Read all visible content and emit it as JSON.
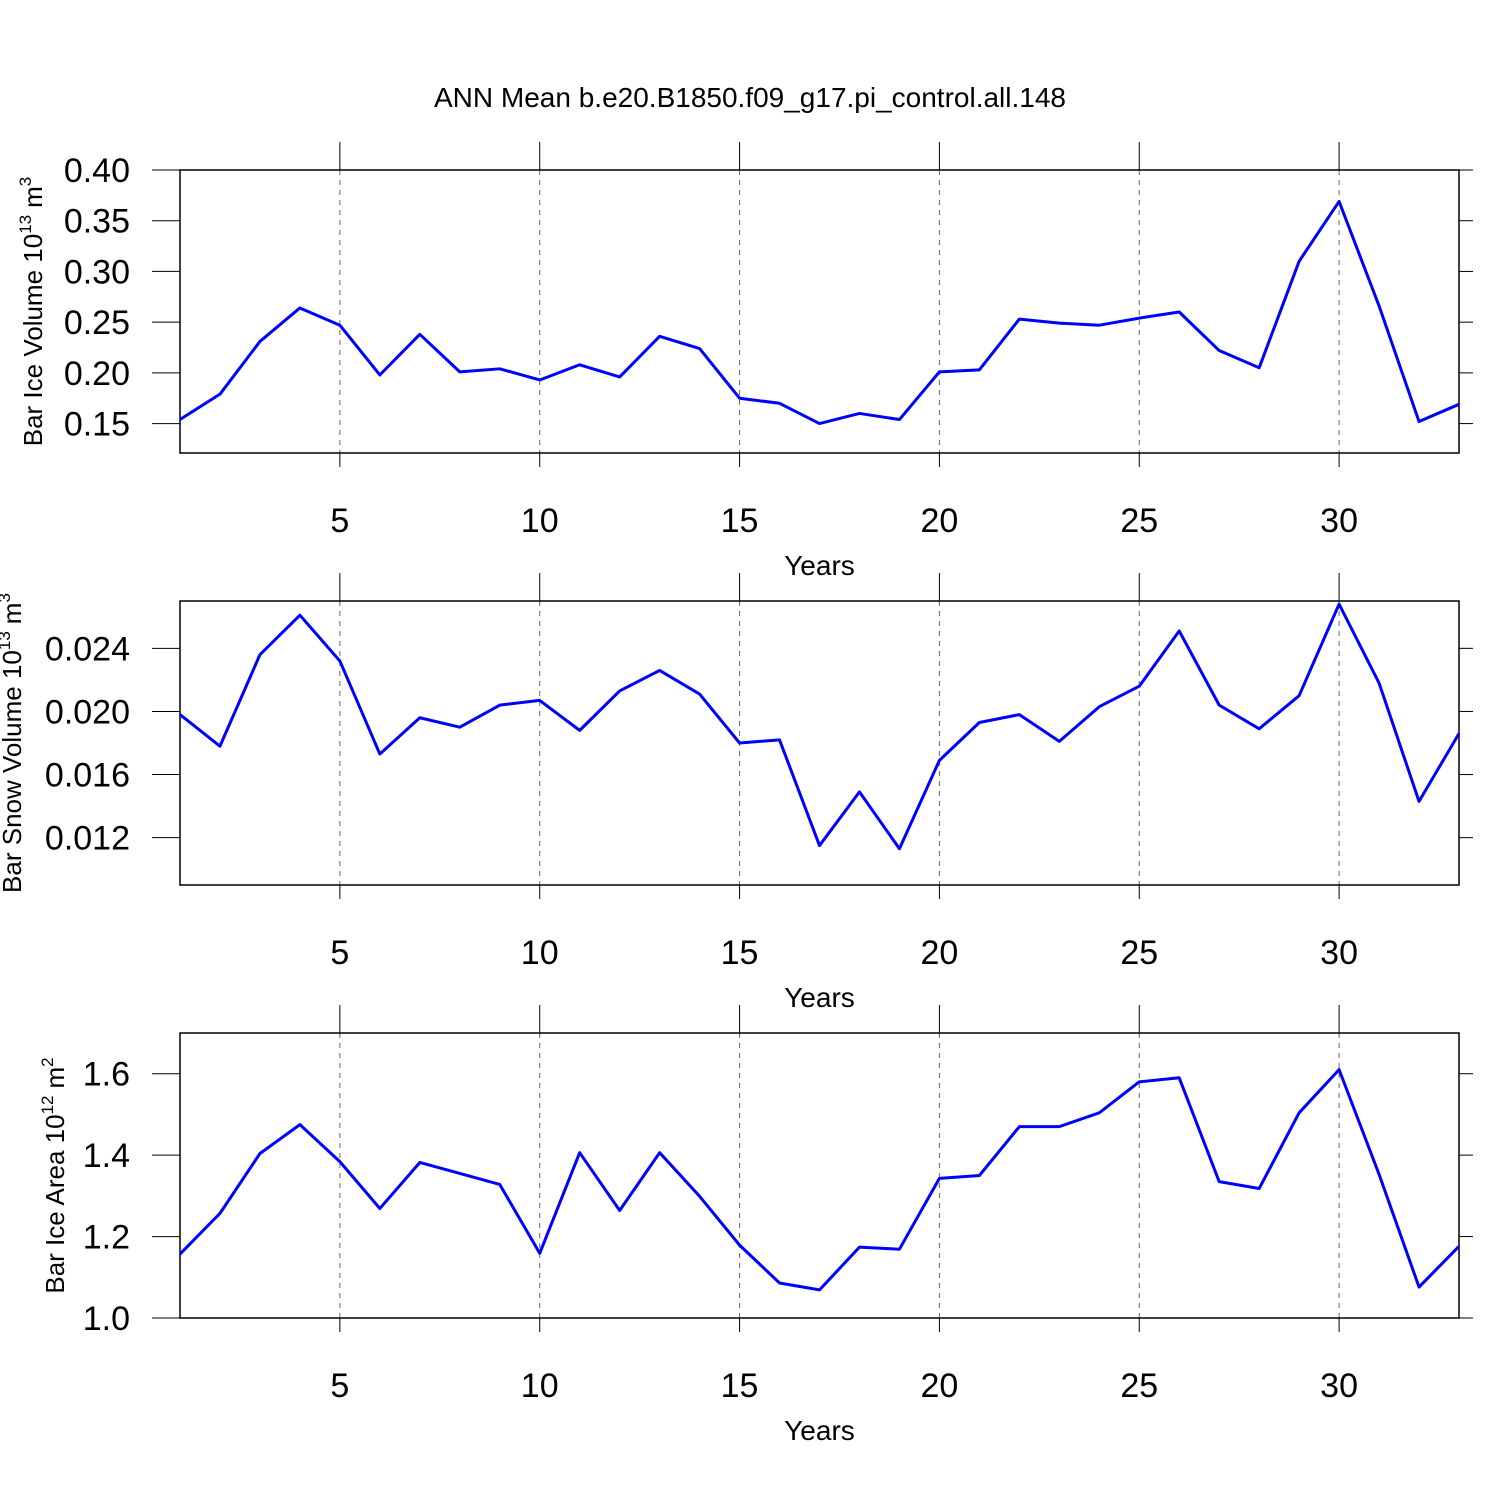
{
  "title": "ANN Mean b.e20.B1850.f09_g17.pi_control.all.148",
  "chart_data": [
    {
      "type": "line",
      "ylabel": [
        "Bar Ice Volume 10",
        "13",
        "m",
        "3"
      ],
      "xlabel": "Years",
      "x": [
        1,
        2,
        3,
        4,
        5,
        6,
        7,
        8,
        9,
        10,
        11,
        12,
        13,
        14,
        15,
        16,
        17,
        18,
        19,
        20,
        21,
        22,
        23,
        24,
        25,
        26,
        27,
        28,
        29,
        30,
        31,
        32,
        33
      ],
      "series": [
        {
          "color": "#0000ff",
          "values": [
            0.154,
            0.179,
            0.231,
            0.264,
            0.247,
            0.198,
            0.238,
            0.201,
            0.204,
            0.193,
            0.208,
            0.196,
            0.236,
            0.224,
            0.175,
            0.17,
            0.15,
            0.16,
            0.154,
            0.201,
            0.203,
            0.253,
            0.249,
            0.247,
            0.254,
            0.26,
            0.222,
            0.205,
            0.31,
            0.369,
            0.266,
            0.152,
            0.169
          ]
        }
      ],
      "xlim": [
        1,
        33
      ],
      "xticks": [
        5,
        10,
        15,
        20,
        25,
        30
      ],
      "ylim": [
        0.121,
        0.4
      ],
      "yticks": [
        0.15,
        {
          "value": 0.2,
          "label": "0.20"
        },
        0.25,
        {
          "value": 0.3,
          "label": "0.30"
        },
        0.35,
        {
          "value": 0.4,
          "label": "0.40"
        }
      ],
      "xgrid": true
    },
    {
      "type": "line",
      "ylabel": [
        "Bar Snow Volume 10",
        "13",
        "m",
        "3"
      ],
      "xlabel": "Years",
      "x": [
        1,
        2,
        3,
        4,
        5,
        6,
        7,
        8,
        9,
        10,
        11,
        12,
        13,
        14,
        15,
        16,
        17,
        18,
        19,
        20,
        21,
        22,
        23,
        24,
        25,
        26,
        27,
        28,
        29,
        30,
        31,
        32,
        33
      ],
      "series": [
        {
          "color": "#0000ff",
          "values": [
            0.0198,
            0.0178,
            0.0236,
            0.0261,
            0.0232,
            0.0173,
            0.0196,
            0.019,
            0.0204,
            0.0207,
            0.0188,
            0.0213,
            0.0226,
            0.0211,
            0.018,
            0.0182,
            0.0115,
            0.0149,
            0.0113,
            0.0169,
            0.0193,
            0.0198,
            0.0181,
            0.0203,
            0.0216,
            0.0251,
            0.0204,
            0.0189,
            0.021,
            0.0268,
            0.0218,
            0.0143,
            0.0186
          ]
        }
      ],
      "xlim": [
        1,
        33
      ],
      "xticks": [
        5,
        10,
        15,
        20,
        25,
        30
      ],
      "ylim": [
        0.009,
        0.027
      ],
      "yticks": [
        0.012,
        0.016,
        {
          "value": 0.02,
          "label": "0.020"
        },
        0.024
      ],
      "xgrid": true
    },
    {
      "type": "line",
      "ylabel": [
        "Bar Ice Area 10",
        "12",
        "m",
        "2"
      ],
      "xlabel": "Years",
      "x": [
        1,
        2,
        3,
        4,
        5,
        6,
        7,
        8,
        9,
        10,
        11,
        12,
        13,
        14,
        15,
        16,
        17,
        18,
        19,
        20,
        21,
        22,
        23,
        24,
        25,
        26,
        27,
        28,
        29,
        30,
        31,
        32,
        33
      ],
      "series": [
        {
          "color": "#0000ff",
          "values": [
            1.157,
            1.257,
            1.404,
            1.475,
            1.384,
            1.269,
            1.382,
            1.355,
            1.328,
            1.159,
            1.406,
            1.264,
            1.406,
            1.299,
            1.179,
            1.086,
            1.069,
            1.174,
            1.169,
            1.343,
            1.35,
            1.47,
            1.47,
            1.504,
            1.58,
            1.59,
            1.335,
            1.318,
            1.504,
            1.61,
            1.353,
            1.076,
            1.176
          ]
        }
      ],
      "xlim": [
        1,
        33
      ],
      "xticks": [
        5,
        10,
        15,
        20,
        25,
        30
      ],
      "ylim": [
        1.0,
        1.7
      ],
      "yticks": [
        {
          "value": 1.0,
          "label": "1.0"
        },
        1.2,
        1.4,
        1.6
      ],
      "xgrid": true
    }
  ]
}
